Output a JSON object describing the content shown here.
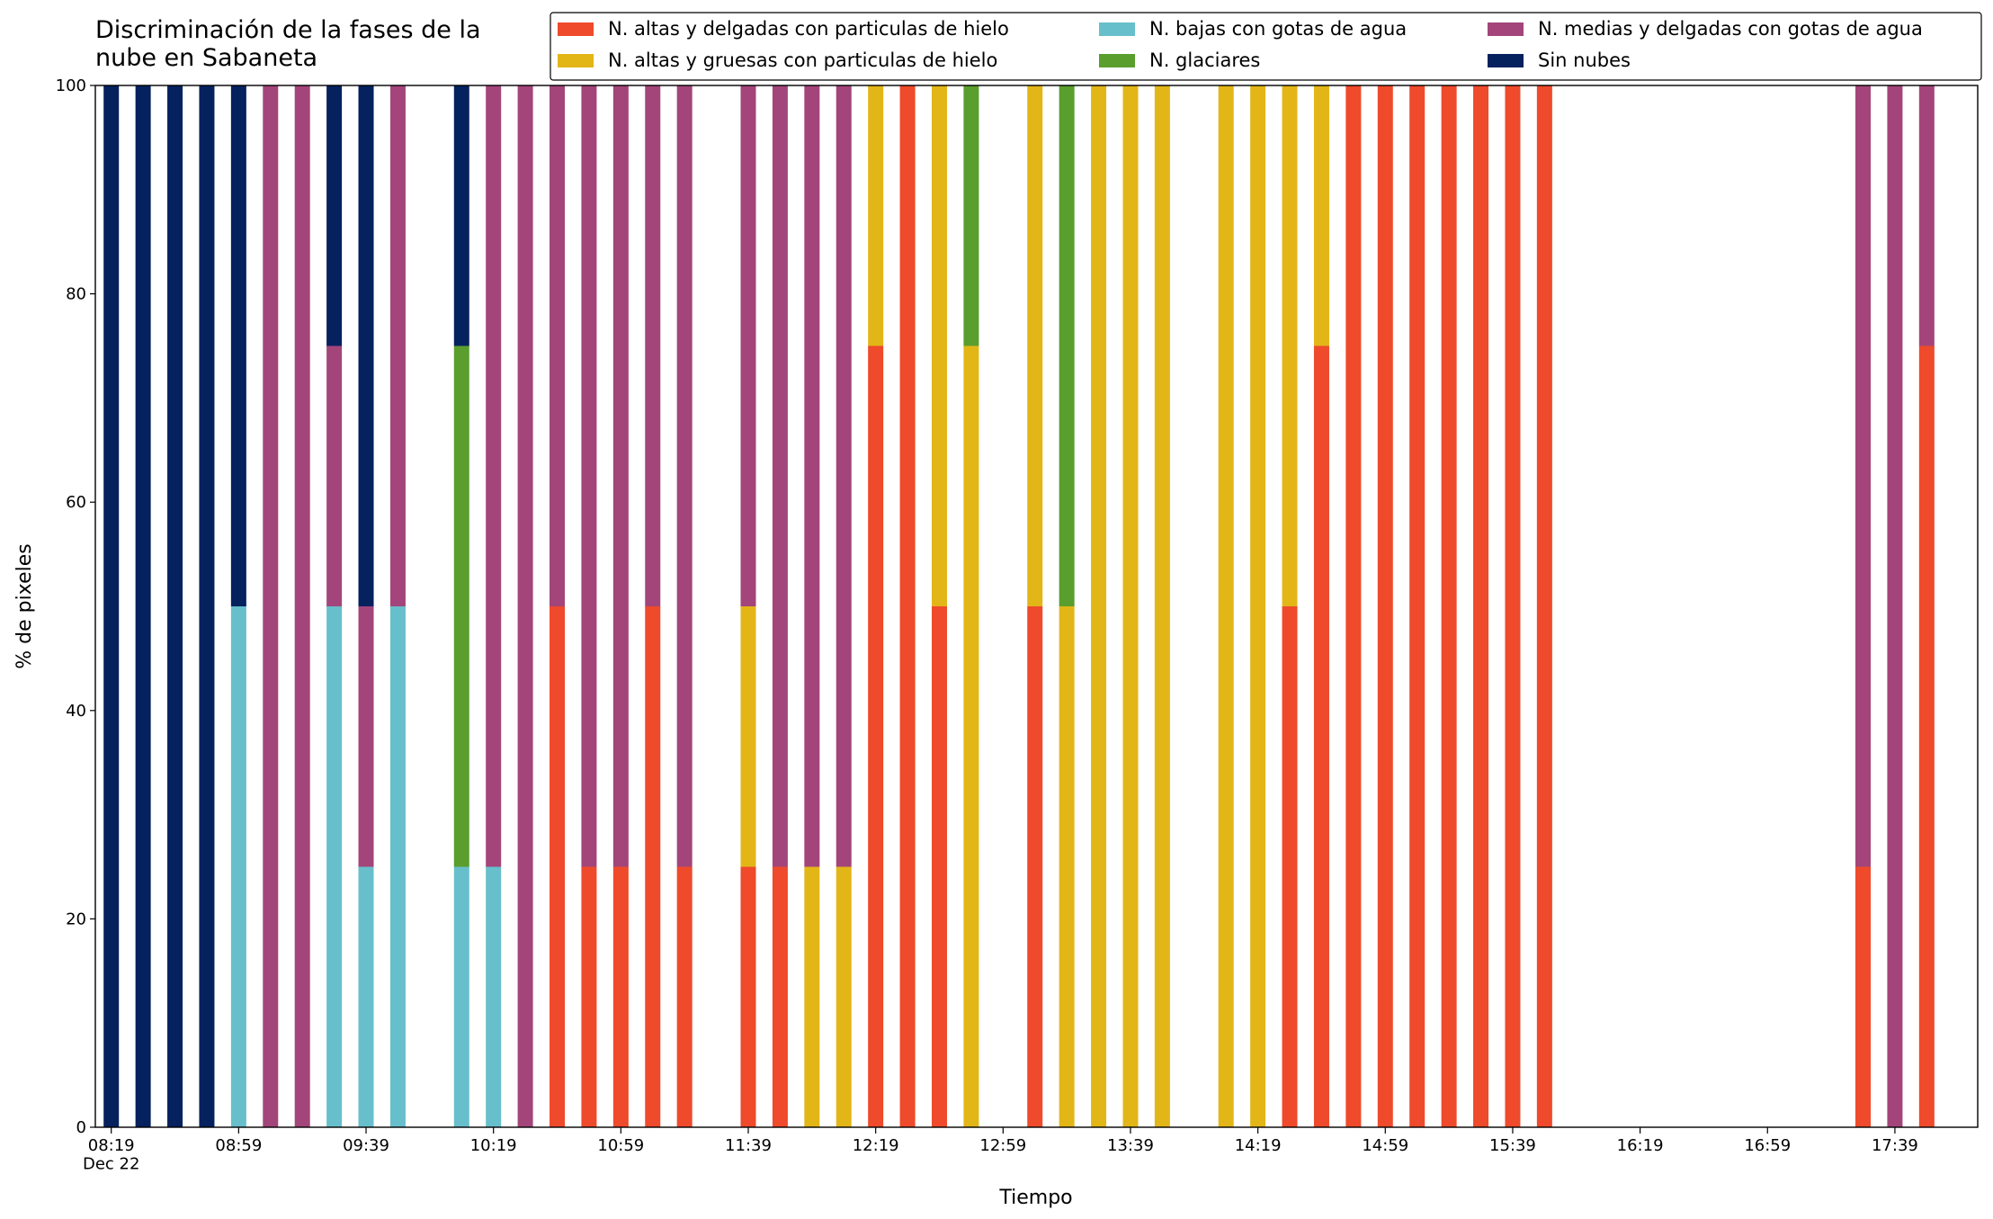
{
  "chart_data": {
    "type": "stacked_bar",
    "title": "Discriminación de la fases de la\nnube en Sabaneta",
    "xlabel": "Tiempo",
    "ylabel": "% de pixeles",
    "x": [
      "08:19",
      "08:29",
      "08:39",
      "08:49",
      "08:59",
      "09:09",
      "09:19",
      "09:29",
      "09:39",
      "09:49",
      "10:09",
      "10:19",
      "10:29",
      "10:39",
      "10:49",
      "10:59",
      "11:09",
      "11:19",
      "11:39",
      "11:49",
      "11:59",
      "12:09",
      "12:19",
      "12:29",
      "12:39",
      "12:49",
      "13:09",
      "13:19",
      "13:29",
      "13:39",
      "13:49",
      "14:09",
      "14:19",
      "14:29",
      "14:39",
      "14:49",
      "14:59",
      "15:09",
      "15:19",
      "15:29",
      "15:39",
      "15:49",
      "17:29",
      "17:39",
      "17:49"
    ],
    "xlim": [
      "08:14",
      "18:05"
    ],
    "xticks": [
      {
        "value": "08:19",
        "label": "08:19\nDec 22"
      },
      "08:59",
      "09:39",
      "10:19",
      "10:59",
      "11:39",
      "12:19",
      "12:59",
      "13:39",
      "14:19",
      "14:59",
      "15:39",
      "16:19",
      "16:59",
      "17:39"
    ],
    "ylim": [
      0,
      100
    ],
    "yticks": [
      0,
      20,
      40,
      60,
      80,
      100
    ],
    "grid": false,
    "legend": "upper right",
    "series": [
      {
        "name": "N. altas y delgadas con particulas de hielo",
        "color": "#ee4a2b",
        "values": [
          0,
          0,
          0,
          0,
          0,
          0,
          0,
          0,
          0,
          0,
          0,
          0,
          0,
          50,
          25,
          25,
          50,
          25,
          25,
          25,
          0,
          0,
          75,
          100,
          50,
          0,
          50,
          0,
          0,
          0,
          0,
          0,
          0,
          50,
          75,
          100,
          100,
          100,
          100,
          100,
          100,
          100,
          25,
          0,
          75
        ]
      },
      {
        "name": "N. altas y gruesas con particulas de hielo",
        "color": "#e3b618",
        "values": [
          0,
          0,
          0,
          0,
          0,
          0,
          0,
          0,
          0,
          0,
          0,
          0,
          0,
          0,
          0,
          0,
          0,
          0,
          25,
          0,
          25,
          25,
          25,
          0,
          50,
          75,
          50,
          50,
          100,
          100,
          100,
          100,
          100,
          50,
          25,
          0,
          0,
          0,
          0,
          0,
          0,
          0,
          0,
          0,
          0
        ]
      },
      {
        "name": "N. bajas con gotas de agua",
        "color": "#67bfcb",
        "values": [
          0,
          0,
          0,
          0,
          50,
          0,
          0,
          50,
          25,
          50,
          25,
          25,
          0,
          0,
          0,
          0,
          0,
          0,
          0,
          0,
          0,
          0,
          0,
          0,
          0,
          0,
          0,
          0,
          0,
          0,
          0,
          0,
          0,
          0,
          0,
          0,
          0,
          0,
          0,
          0,
          0,
          0,
          0,
          0,
          0
        ]
      },
      {
        "name": "N. glaciares",
        "color": "#5a9e2d",
        "values": [
          0,
          0,
          0,
          0,
          0,
          0,
          0,
          0,
          0,
          0,
          50,
          0,
          0,
          0,
          0,
          0,
          0,
          0,
          0,
          0,
          0,
          0,
          0,
          0,
          0,
          25,
          0,
          50,
          0,
          0,
          0,
          0,
          0,
          0,
          0,
          0,
          0,
          0,
          0,
          0,
          0,
          0,
          0,
          0,
          0
        ]
      },
      {
        "name": "N. medias y delgadas con gotas de agua",
        "color": "#a3457a",
        "values": [
          0,
          0,
          0,
          0,
          0,
          100,
          100,
          25,
          25,
          50,
          0,
          75,
          100,
          50,
          75,
          75,
          50,
          75,
          50,
          75,
          75,
          75,
          0,
          0,
          0,
          0,
          0,
          0,
          0,
          0,
          0,
          0,
          0,
          0,
          0,
          0,
          0,
          0,
          0,
          0,
          0,
          0,
          75,
          100,
          25
        ]
      },
      {
        "name": "Sin nubes",
        "color": "#05215e",
        "values": [
          100,
          100,
          100,
          100,
          50,
          0,
          0,
          25,
          50,
          0,
          25,
          0,
          0,
          0,
          0,
          0,
          0,
          0,
          0,
          0,
          0,
          0,
          0,
          0,
          0,
          0,
          0,
          0,
          0,
          0,
          0,
          0,
          0,
          0,
          0,
          0,
          0,
          0,
          0,
          0,
          0,
          0,
          0,
          0,
          0
        ]
      }
    ]
  }
}
